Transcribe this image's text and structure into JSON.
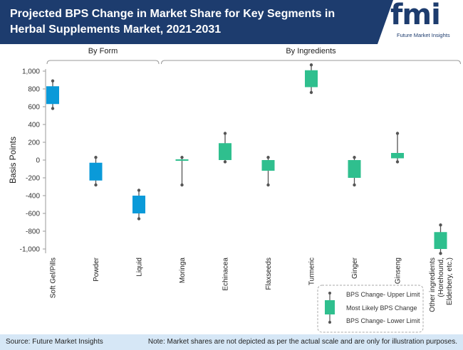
{
  "header": {
    "title": "Projected BPS Change in Market Share for Key Segments in Herbal Supplements Market, 2021-2031",
    "logo_text": "fmi",
    "logo_subtitle": "Future Market Insights"
  },
  "footer": {
    "source": "Source: Future Market Insights",
    "note": "Note: Market shares are not depicted as per the actual scale and are only for illustration purposes."
  },
  "colors": {
    "header_bg": "#1d3c6e",
    "by_form": "#0a9ad9",
    "by_ingredients": "#2fbf8e",
    "whisker": "#555555",
    "footer_bg": "#d6e7f6"
  },
  "chart_data": {
    "type": "box",
    "ylabel": "Basis Points",
    "ylim": [
      -1000,
      1000
    ],
    "yticks": [
      {
        "value": 1000,
        "label": "1,000"
      },
      {
        "value": 800,
        "label": "800"
      },
      {
        "value": 600,
        "label": "600"
      },
      {
        "value": 400,
        "label": "400"
      },
      {
        "value": 200,
        "label": "200"
      },
      {
        "value": 0,
        "label": "0"
      },
      {
        "value": -200,
        "label": "-200"
      },
      {
        "value": -400,
        "label": "-400"
      },
      {
        "value": -600,
        "label": "-600"
      },
      {
        "value": -800,
        "label": "-800"
      },
      {
        "value": -1000,
        "label": "-1,000"
      }
    ],
    "groups": [
      {
        "name": "By Form",
        "count": 3
      },
      {
        "name": "By Ingredients",
        "count": 7
      }
    ],
    "categories": [
      {
        "lines": [
          "Soft Gel/Pills"
        ],
        "group": 0,
        "upper": 890,
        "box_high": 830,
        "box_low": 630,
        "lower": 580
      },
      {
        "lines": [
          "Powder"
        ],
        "group": 0,
        "upper": 30,
        "box_high": -30,
        "box_low": -230,
        "lower": -280
      },
      {
        "lines": [
          "Liquid"
        ],
        "group": 0,
        "upper": -340,
        "box_high": -400,
        "box_low": -600,
        "lower": -660
      },
      {
        "lines": [
          "Moringa"
        ],
        "group": 1,
        "upper": 30,
        "box_high": 0,
        "box_low": 0,
        "lower": -280
      },
      {
        "lines": [
          "Echinacea"
        ],
        "group": 1,
        "upper": 300,
        "box_high": 190,
        "box_low": 0,
        "lower": -20
      },
      {
        "lines": [
          "Flaxseeds"
        ],
        "group": 1,
        "upper": 30,
        "box_high": 0,
        "box_low": -120,
        "lower": -280
      },
      {
        "lines": [
          "Turmeric"
        ],
        "group": 1,
        "upper": 1070,
        "box_high": 1010,
        "box_low": 820,
        "lower": 760
      },
      {
        "lines": [
          "Ginger"
        ],
        "group": 1,
        "upper": 30,
        "box_high": 0,
        "box_low": -200,
        "lower": -280
      },
      {
        "lines": [
          "Ginseng"
        ],
        "group": 1,
        "upper": 300,
        "box_high": 80,
        "box_low": 20,
        "lower": -20
      },
      {
        "lines": [
          "Other ingredients",
          "(Horehound,",
          "Elderbery, etc.)"
        ],
        "group": 1,
        "upper": -730,
        "box_high": -810,
        "box_low": -1000,
        "lower": -1050
      }
    ],
    "legend": {
      "position": "bottom-right",
      "upper": "BPS Change- Upper Limit",
      "likely": "Most Likely BPS Change",
      "lower": "BPS Change- Lower Limit"
    }
  }
}
